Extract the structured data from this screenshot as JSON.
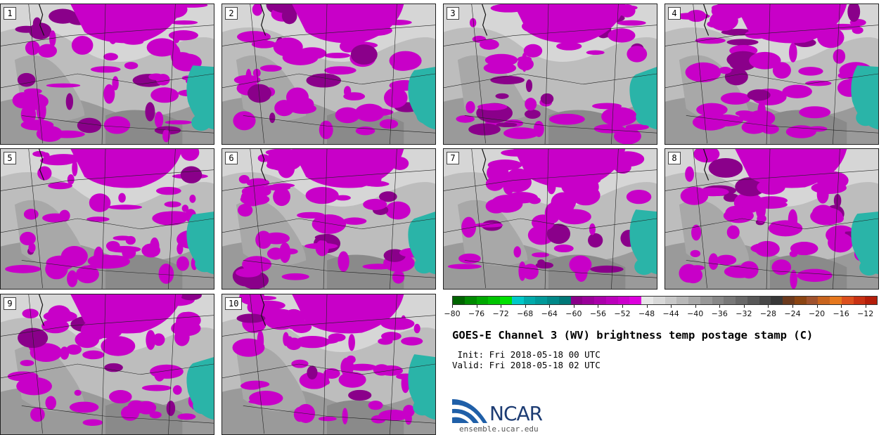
{
  "panels": [
    {
      "label": "1"
    },
    {
      "label": "2"
    },
    {
      "label": "3"
    },
    {
      "label": "4"
    },
    {
      "label": "5"
    },
    {
      "label": "6"
    },
    {
      "label": "7"
    },
    {
      "label": "8"
    },
    {
      "label": "9"
    },
    {
      "label": "10"
    }
  ],
  "colorbar": {
    "colors": [
      "#006400",
      "#008a00",
      "#00a800",
      "#00c400",
      "#00e000",
      "#00c8c8",
      "#00aaaa",
      "#009999",
      "#008888",
      "#007777",
      "#880088",
      "#990099",
      "#aa00aa",
      "#bb00bb",
      "#cc00cc",
      "#dd00dd",
      "#e6e6e6",
      "#d8d8d8",
      "#c8c8c8",
      "#b8b8b8",
      "#a8a8a8",
      "#989898",
      "#888888",
      "#787878",
      "#686868",
      "#585858",
      "#484848",
      "#383838",
      "#6b3a1e",
      "#8b4513",
      "#a0522d",
      "#c8641e",
      "#e6781e",
      "#dc501e",
      "#c83214",
      "#b41e0a"
    ],
    "min": -80,
    "max": -10,
    "ticks": [
      "-80",
      "-76",
      "-72",
      "-68",
      "-64",
      "-60",
      "-56",
      "-52",
      "-48",
      "-44",
      "-40",
      "-36",
      "-32",
      "-28",
      "-24",
      "-20",
      "-16",
      "-12"
    ]
  },
  "title": "GOES-E Channel 3 (WV) brightness temp postage stamp (C)",
  "init": " Init: Fri 2018-05-18 00 UTC",
  "valid": "Valid: Fri 2018-05-18 02 UTC",
  "logo": {
    "text": "NCAR",
    "url": "ensemble.ucar.edu"
  }
}
